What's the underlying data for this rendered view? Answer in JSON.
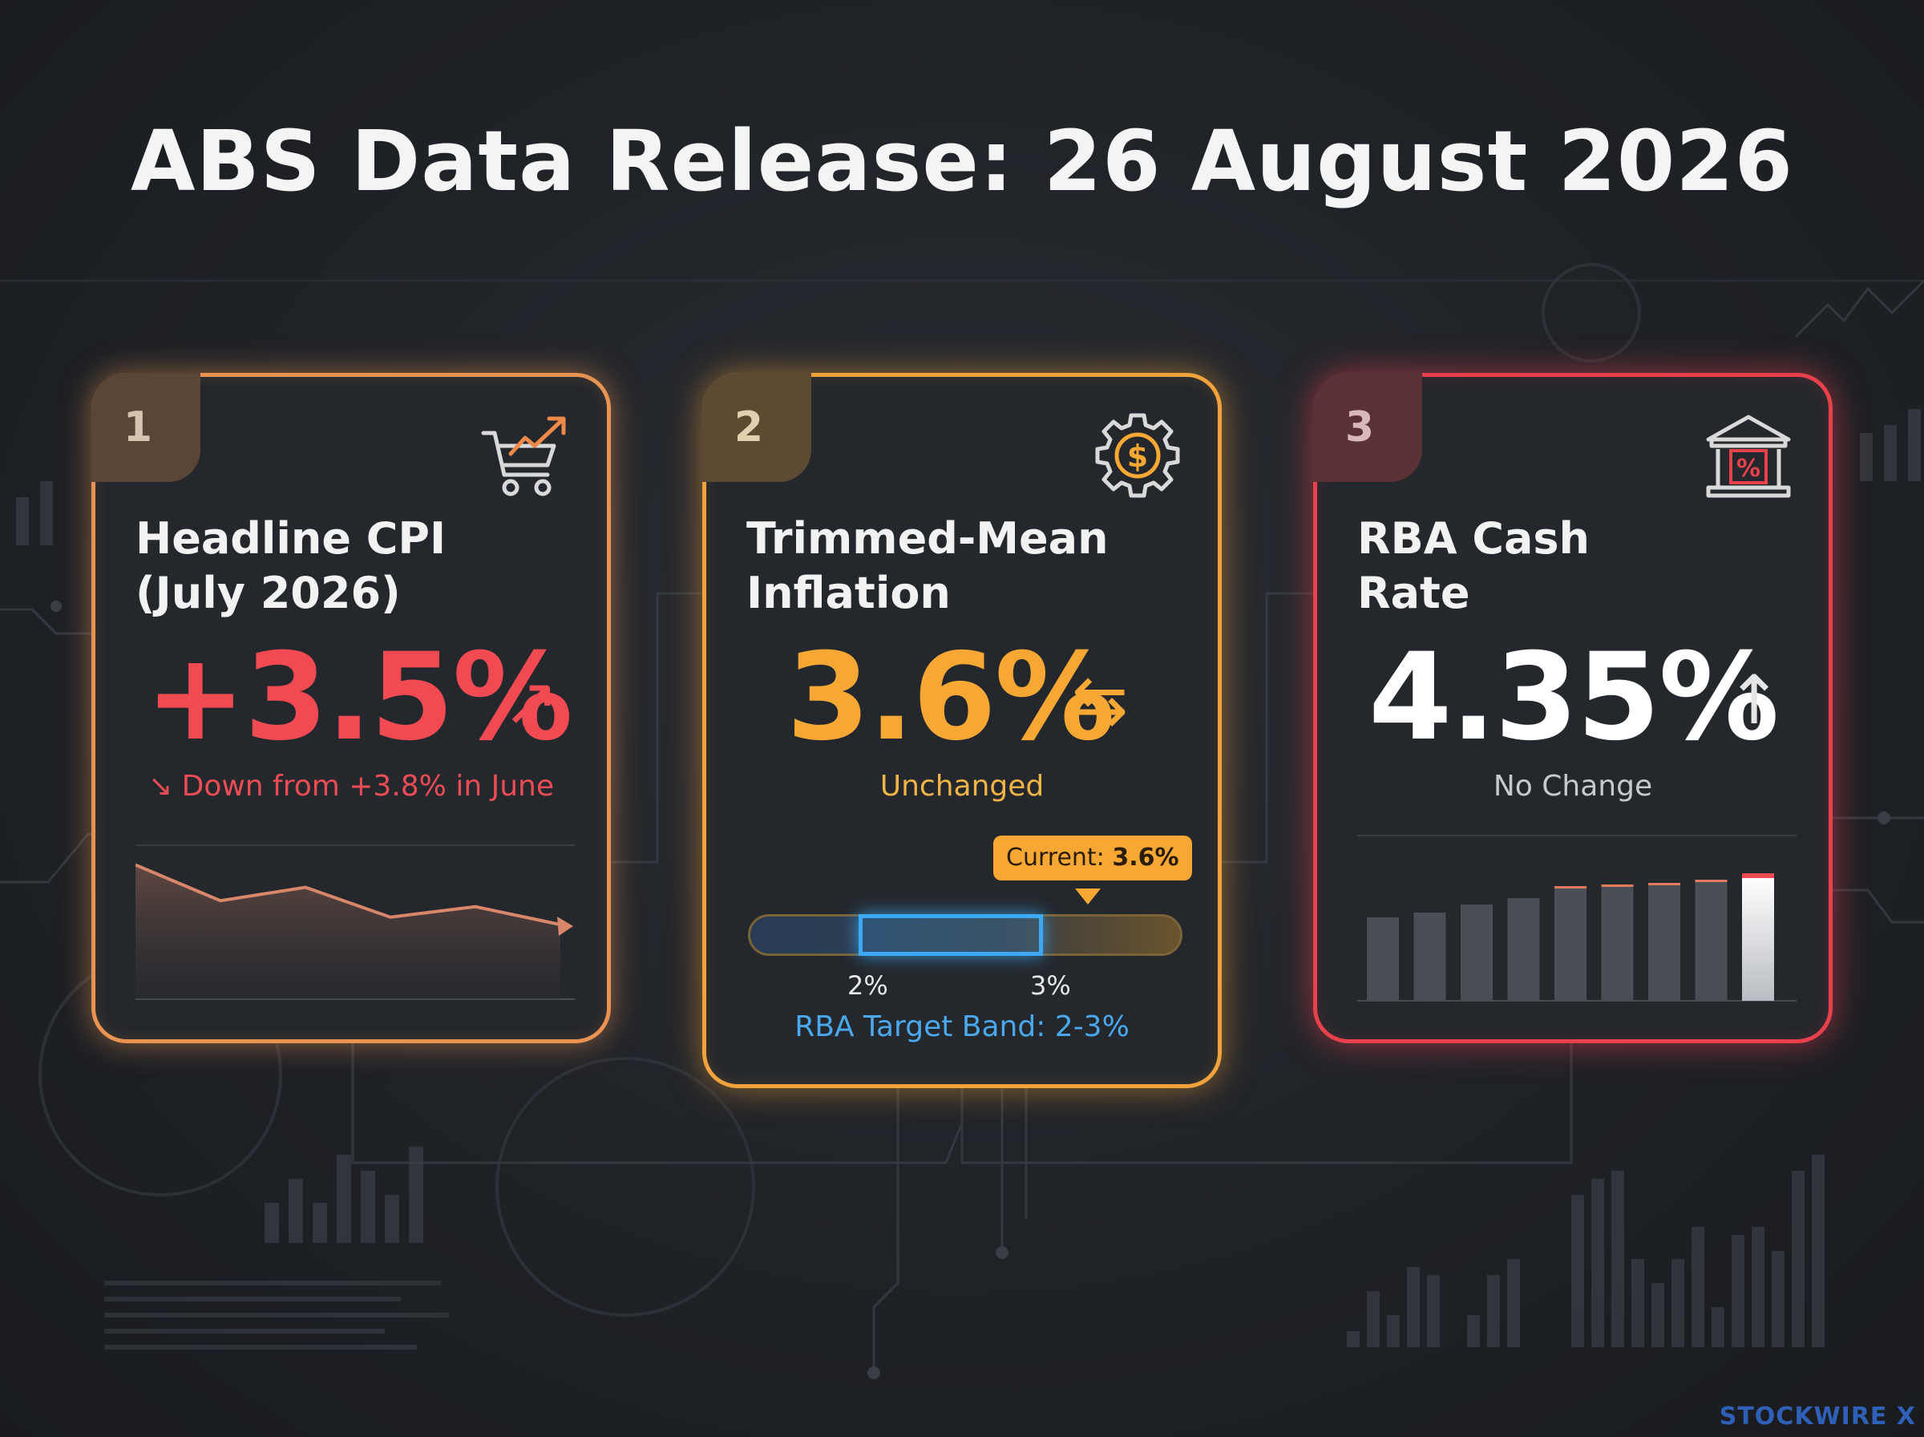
{
  "title": "ABS Data Release: 26 August 2026",
  "colors": {
    "orange": "#e99352",
    "amber": "#f6a734",
    "red": "#e8414c",
    "blue": "#3ba9f5"
  },
  "cards": [
    {
      "number": "1",
      "icon": "cart-trend-icon",
      "title": "Headline CPI\n(July 2026)",
      "value": "+3.5%",
      "trend_glyph": "↗",
      "subtext": "↘ Down from +3.8% in June",
      "sparkline": [
        0.9,
        0.66,
        0.75,
        0.55,
        0.62,
        0.5
      ]
    },
    {
      "number": "2",
      "icon": "gear-dollar-icon",
      "title": "Trimmed-Mean\nInflation",
      "value": "3.6%",
      "trend_glyph": "⇆",
      "subtext": "Unchanged",
      "current_label": "Current:",
      "current_value": "3.6%",
      "band_low": "2%",
      "band_high": "3%",
      "band_caption": "RBA Target Band: 2-3%"
    },
    {
      "number": "3",
      "icon": "bank-percent-icon",
      "title": "RBA Cash\nRate",
      "value": "4.35%",
      "trend_glyph": "↑",
      "subtext": "No Change",
      "bars": [
        0.52,
        0.55,
        0.6,
        0.64,
        0.7,
        0.71,
        0.72,
        0.74,
        0.78
      ]
    }
  ],
  "watermark": "STOCKWIRE X"
}
